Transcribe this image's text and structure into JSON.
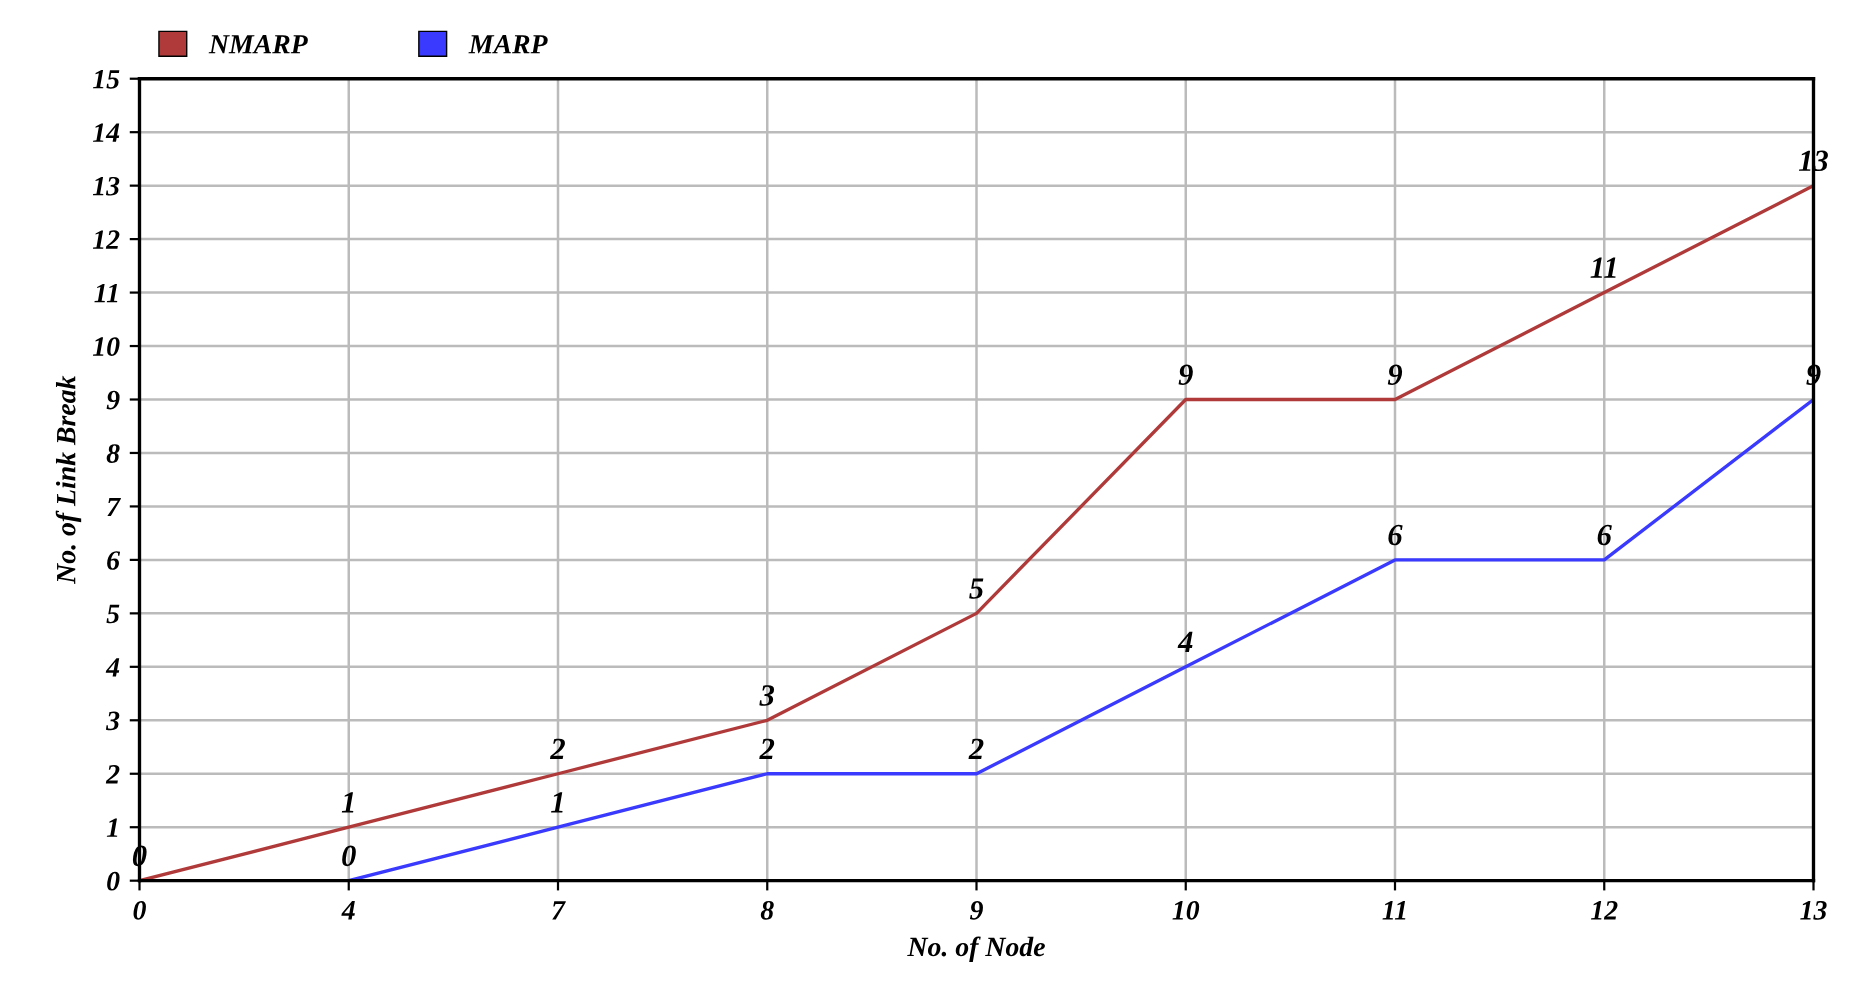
{
  "chart_data": {
    "type": "line",
    "xlabel": "No. of Node",
    "ylabel": "No. of Link Break",
    "categories": [
      "0",
      "4",
      "7",
      "8",
      "9",
      "10",
      "11",
      "12",
      "13"
    ],
    "series": [
      {
        "name": "NMARP",
        "color": "#b03a3a",
        "values": [
          0,
          1,
          2,
          3,
          5,
          9,
          9,
          11,
          13
        ]
      },
      {
        "name": "MARP",
        "color": "#3a3aff",
        "values": [
          null,
          0,
          1,
          2,
          2,
          4,
          6,
          6,
          9
        ]
      }
    ],
    "ylim": [
      0,
      15
    ],
    "yticks": [
      0,
      1,
      2,
      3,
      4,
      5,
      6,
      7,
      8,
      9,
      10,
      11,
      12,
      13,
      14,
      15
    ],
    "grid": true,
    "legend": "top left",
    "data_labels": true,
    "marker": "none",
    "line_style": "solid"
  }
}
